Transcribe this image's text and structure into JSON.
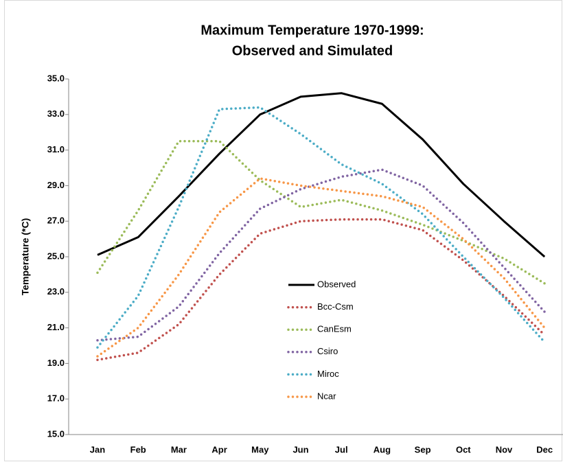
{
  "chart_data": {
    "type": "line",
    "title": [
      "Maximum Temperature 1970-1999:",
      "Observed and Simulated"
    ],
    "y_label": "Temperature (*C)",
    "categories": [
      "Jan",
      "Feb",
      "Mar",
      "Apr",
      "May",
      "Jun",
      "Jul",
      "Aug",
      "Sep",
      "Oct",
      "Nov",
      "Dec"
    ],
    "ylim": [
      15,
      35
    ],
    "yticks": [
      {
        "value": 15,
        "label": "15.0"
      },
      {
        "value": 17,
        "label": "17.0"
      },
      {
        "value": 19,
        "label": "19.0"
      },
      {
        "value": 21,
        "label": "21.0"
      },
      {
        "value": 23,
        "label": "23.0"
      },
      {
        "value": 25,
        "label": "25.0"
      },
      {
        "value": 27,
        "label": "27.0"
      },
      {
        "value": 29,
        "label": "29.0"
      },
      {
        "value": 31,
        "label": "31.0"
      },
      {
        "value": 33,
        "label": "33.0"
      },
      {
        "value": 35,
        "label": "35.0"
      }
    ],
    "grid": false,
    "legend": "center",
    "series": [
      {
        "name": "Observed",
        "color": "#000000",
        "style": "solid",
        "values": [
          25.1,
          26.1,
          28.4,
          30.8,
          33.0,
          34.0,
          34.2,
          33.6,
          31.6,
          29.1,
          27.0,
          25.0
        ]
      },
      {
        "name": "Bcc-Csm",
        "color": "#c0504d",
        "style": "dotted",
        "values": [
          19.2,
          19.6,
          21.2,
          24.0,
          26.3,
          27.0,
          27.1,
          27.1,
          26.5,
          24.8,
          22.8,
          20.6
        ]
      },
      {
        "name": "CanEsm",
        "color": "#9bbb59",
        "style": "dotted",
        "values": [
          24.1,
          27.6,
          31.5,
          31.5,
          29.3,
          27.8,
          28.2,
          27.6,
          26.8,
          25.9,
          24.9,
          23.5
        ]
      },
      {
        "name": "Csiro",
        "color": "#8064a2",
        "style": "dotted",
        "values": [
          20.3,
          20.5,
          22.2,
          25.2,
          27.7,
          28.8,
          29.5,
          29.9,
          29.0,
          26.9,
          24.4,
          21.9
        ]
      },
      {
        "name": "Miroc",
        "color": "#4bacc6",
        "style": "dotted",
        "values": [
          19.9,
          22.8,
          27.8,
          33.3,
          33.4,
          31.9,
          30.2,
          29.1,
          27.4,
          25.0,
          22.7,
          20.2
        ]
      },
      {
        "name": "Ncar",
        "color": "#f79646",
        "style": "dotted",
        "values": [
          19.4,
          21.0,
          24.0,
          27.5,
          29.4,
          29.0,
          28.7,
          28.4,
          27.8,
          26.0,
          23.8,
          21.0
        ]
      }
    ]
  }
}
